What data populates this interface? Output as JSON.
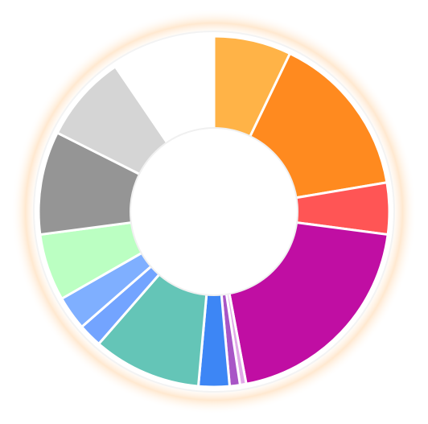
{
  "chart_data": {
    "type": "pie",
    "title": "",
    "legend": "none",
    "slices": [
      {
        "value": 7.5,
        "color": "#FFB347"
      },
      {
        "value": 16.0,
        "color": "#FF8A1F"
      },
      {
        "value": 5.0,
        "color": "#FF5555"
      },
      {
        "value": 21.0,
        "color": "#C00EA3"
      },
      {
        "value": 0.6,
        "color": "#E1A9E8"
      },
      {
        "value": 1.0,
        "color": "#A855C6"
      },
      {
        "value": 3.0,
        "color": "#3D86F5"
      },
      {
        "value": 10.5,
        "color": "#64C5B7"
      },
      {
        "value": 2.3,
        "color": "#73A4FF"
      },
      {
        "value": 3.3,
        "color": "#7FAFFF"
      },
      {
        "value": 6.5,
        "color": "#BBFFC2"
      },
      {
        "value": 10.0,
        "color": "#959595"
      },
      {
        "value": 8.5,
        "color": "#D5D5D5"
      },
      {
        "value": 10.0,
        "color": "#FFFFFF"
      }
    ]
  }
}
